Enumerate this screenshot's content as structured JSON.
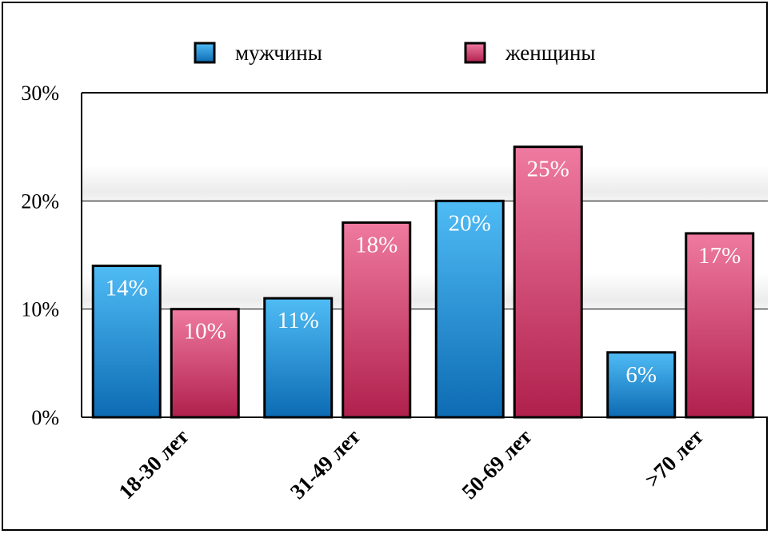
{
  "chart_data": {
    "type": "bar",
    "categories": [
      "18-30 лет",
      "31-49 лет",
      "50-69 лет",
      ">70 лет"
    ],
    "series": [
      {
        "name": "мужчины",
        "values": [
          14,
          11,
          20,
          6
        ],
        "color": "#2f9fe0"
      },
      {
        "name": "женщины",
        "values": [
          10,
          18,
          25,
          17
        ],
        "color": "#d9436f"
      }
    ],
    "data_labels": [
      [
        "14%",
        "11%",
        "20%",
        "6%"
      ],
      [
        "10%",
        "18%",
        "25%",
        "17%"
      ]
    ],
    "ylim": [
      0,
      30
    ],
    "yticks": [
      0,
      10,
      20,
      30
    ],
    "ytick_labels": [
      "0%",
      "10%",
      "20%",
      "30%"
    ],
    "legend_position": "top",
    "grid": true
  }
}
